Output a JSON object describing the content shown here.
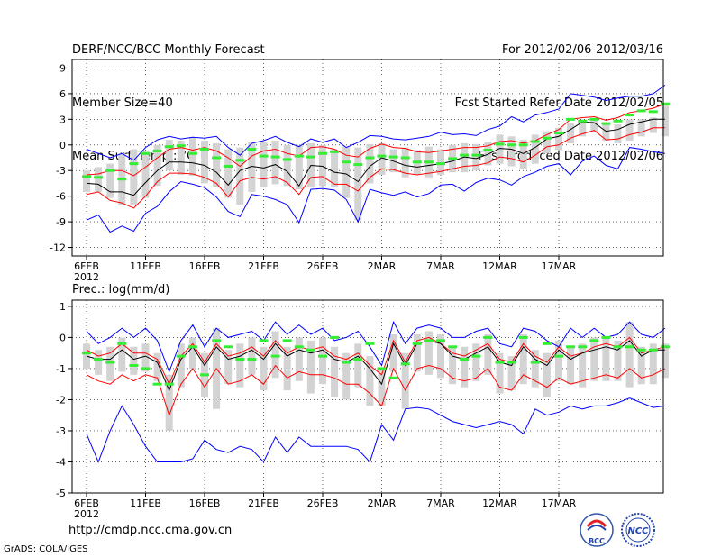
{
  "header": {
    "title": "DERF/NCC/BCC Monthly Forecast",
    "member_size": "Member Size=40",
    "variable": "Mean Surf. Temp.: °C",
    "period": "For 2012/02/06-2012/03/16",
    "refer_date": "Fcst Started Refer Date 2012/02/05",
    "produced_date": "Fcst Produced Date 2012/02/06"
  },
  "footer": {
    "url": "http://cmdp.ncc.cma.gov.cn",
    "grads": "GrADS: COLA/IGES",
    "logo_left_text": "BCC",
    "logo_right_text": "NCC"
  },
  "colors": {
    "envelope": "#0000ff",
    "band": "#ff0000",
    "mean": "#000000",
    "box": "#d3d3d3",
    "median": "#33ee33",
    "grid": "#000000"
  },
  "chart_data": [
    {
      "type": "line",
      "title": "Mean Surf. Temp.: °C",
      "ylim": [
        -13,
        10
      ],
      "yticks": [
        9,
        6,
        3,
        0,
        -3,
        -6,
        -9,
        -12
      ],
      "xticks": [
        "6FEB",
        "11FEB",
        "16FEB",
        "21FEB",
        "26FEB",
        "2MAR",
        "7MAR",
        "12MAR",
        "17MAR"
      ],
      "xtick_sub": "2012",
      "series": [
        {
          "name": "max",
          "values": [
            -0.5,
            -1,
            -1.5,
            -1,
            -1.8,
            -0.3,
            0.6,
            1.0,
            0.7,
            0.9,
            0.8,
            1.0,
            -0.3,
            -1.2,
            0.2,
            0.5,
            1.0,
            0.3,
            -0.2,
            0.7,
            0.3,
            0.7,
            -0.3,
            0.3,
            1.1,
            1.0,
            0.7,
            0.6,
            0.8,
            1.0,
            1.5,
            1.2,
            1.3,
            1.1,
            1.8,
            2.2,
            3.3,
            2.7,
            3.5,
            3.8,
            4.2,
            6.0,
            5.8,
            5.6,
            5.2,
            5.5,
            5.7,
            5.7,
            6.0,
            7.0
          ]
        },
        {
          "name": "upper",
          "values": [
            -3.5,
            -3.4,
            -3.0,
            -3.0,
            -3.6,
            -2.6,
            -1.5,
            -0.5,
            -0.3,
            -0.6,
            -0.3,
            -0.7,
            -1.5,
            -2.5,
            -1.3,
            -0.7,
            -0.5,
            -1.0,
            -1.3,
            -0.3,
            -0.2,
            -0.5,
            -1.2,
            -1.4,
            -0.4,
            0.1,
            -0.3,
            -0.4,
            -0.8,
            -0.9,
            -0.7,
            -0.5,
            -0.3,
            -0.3,
            -0.1,
            0.4,
            0.5,
            0.2,
            0.5,
            1.2,
            1.8,
            3.0,
            3.2,
            3.3,
            2.9,
            3.2,
            3.8,
            4.0,
            4.3,
            4.8
          ]
        },
        {
          "name": "mean",
          "values": [
            -4.5,
            -4.6,
            -5.5,
            -5.5,
            -5.9,
            -4.4,
            -3.0,
            -2.0,
            -2.0,
            -2.1,
            -2.4,
            -3.2,
            -4.7,
            -3.0,
            -2.5,
            -2.7,
            -2.3,
            -3.1,
            -4.8,
            -2.4,
            -2.5,
            -3.2,
            -3.4,
            -4.3,
            -2.5,
            -1.5,
            -1.9,
            -2.4,
            -2.6,
            -2.4,
            -2.2,
            -1.9,
            -1.4,
            -1.6,
            -1.1,
            -0.4,
            -0.5,
            -1.0,
            -0.3,
            0.7,
            1.0,
            1.8,
            2.7,
            2.6,
            1.6,
            1.8,
            2.4,
            2.7,
            3.0,
            3.0
          ]
        },
        {
          "name": "lower",
          "values": [
            -5.8,
            -5.5,
            -6.5,
            -6.8,
            -7.4,
            -6.0,
            -4.3,
            -3.3,
            -3.3,
            -3.4,
            -3.8,
            -4.5,
            -6.1,
            -4.2,
            -3.8,
            -4.0,
            -3.7,
            -4.4,
            -5.8,
            -3.8,
            -3.7,
            -4.6,
            -4.6,
            -5.4,
            -3.8,
            -2.8,
            -2.9,
            -3.3,
            -3.5,
            -3.3,
            -3.1,
            -2.8,
            -2.5,
            -2.4,
            -2.1,
            -1.4,
            -1.6,
            -2.0,
            -1.2,
            -0.2,
            0.0,
            0.8,
            1.3,
            1.7,
            0.6,
            0.7,
            1.2,
            1.5,
            2.0,
            2.0
          ]
        },
        {
          "name": "min",
          "values": [
            -8.8,
            -8.2,
            -10.2,
            -9.5,
            -10.1,
            -8.0,
            -7.2,
            -5.5,
            -4.3,
            -4.6,
            -5.0,
            -6.1,
            -7.8,
            -8.4,
            -5.8,
            -6.0,
            -6.4,
            -7.0,
            -9.1,
            -5.2,
            -5.1,
            -5.3,
            -6.4,
            -9.0,
            -5.2,
            -5.6,
            -5.9,
            -5.5,
            -6.1,
            -5.7,
            -4.7,
            -4.6,
            -5.4,
            -4.4,
            -3.9,
            -4.1,
            -4.7,
            -3.7,
            -3.2,
            -2.5,
            -2.2,
            -3.5,
            -1.9,
            -1.3,
            -2.4,
            -2.8,
            -0.3,
            -0.5,
            -0.8,
            -1.0
          ]
        }
      ],
      "boxes": {
        "upper": [
          -3.0,
          -2.6,
          -2.2,
          -1.0,
          -0.5,
          -0.8,
          0.0,
          0.6,
          0.5,
          0.9,
          0.5,
          0.2,
          -0.5,
          -0.3,
          0.3,
          0.4,
          0.5,
          0.0,
          0.0,
          0.2,
          0.0,
          -0.5,
          -0.2,
          -0.3,
          0.1,
          0.2,
          -0.5,
          -0.3,
          -0.6,
          -0.2,
          -0.5,
          0.0,
          0.2,
          0.1,
          0.4,
          1.2,
          1.0,
          0.6,
          1.2,
          1.6,
          2.0,
          2.5,
          2.6,
          3.0,
          2.5,
          2.4,
          3.0,
          3.0,
          3.2,
          4.6
        ],
        "lower": [
          -5.5,
          -5.5,
          -6.2,
          -7.0,
          -7.0,
          -6.2,
          -4.8,
          -3.0,
          -3.5,
          -3.6,
          -4.5,
          -5.0,
          -6.2,
          -7.0,
          -5.5,
          -5.0,
          -4.6,
          -4.8,
          -5.2,
          -5.0,
          -4.8,
          -5.0,
          -6.2,
          -8.8,
          -4.5,
          -3.5,
          -3.2,
          -3.8,
          -3.5,
          -3.8,
          -3.5,
          -3.2,
          -3.2,
          -3.0,
          -2.4,
          -2.2,
          -2.5,
          -2.8,
          -2.2,
          -1.0,
          -0.6,
          0.2,
          1.0,
          1.5,
          0.5,
          0.2,
          0.5,
          1.0,
          1.4,
          1.0
        ],
        "median": [
          -3.7,
          -3.8,
          -3.0,
          -4.0,
          -2.2,
          -1.0,
          -0.7,
          -0.2,
          -0.1,
          -1.0,
          -0.5,
          -1.5,
          -2.5,
          -1.8,
          -0.5,
          -1.3,
          -1.4,
          -1.7,
          -1.3,
          -1.4,
          -1.0,
          -0.8,
          -2.0,
          -2.3,
          -1.5,
          -1.3,
          -1.4,
          -1.5,
          -2.0,
          -2.0,
          -2.2,
          -1.6,
          -1.2,
          -1.2,
          -0.6,
          0.1,
          0.0,
          0.0,
          0.4,
          0.8,
          1.4,
          3.0,
          2.8,
          3.0,
          2.5,
          2.8,
          3.5,
          4.0,
          3.9,
          4.8
        ]
      }
    },
    {
      "type": "line",
      "title": "Prec.: log(mm/d)",
      "ylim": [
        -5,
        1.2
      ],
      "yticks": [
        1,
        0,
        -1,
        -2,
        -3,
        -4,
        -5
      ],
      "xticks": [
        "6FEB",
        "11FEB",
        "16FEB",
        "21FEB",
        "26FEB",
        "2MAR",
        "7MAR",
        "12MAR",
        "17MAR"
      ],
      "xtick_sub": "2012",
      "series": [
        {
          "name": "max",
          "values": [
            0.2,
            -0.2,
            0.0,
            0.3,
            0.0,
            0.3,
            -0.1,
            -1.1,
            -0.1,
            0.4,
            -0.3,
            0.3,
            0.0,
            0.1,
            0.2,
            -0.1,
            0.5,
            0.1,
            0.4,
            0.1,
            0.3,
            -0.1,
            0.0,
            0.2,
            -0.3,
            -0.9,
            0.5,
            -0.2,
            0.3,
            0.4,
            0.3,
            0.0,
            0.0,
            0.2,
            0.3,
            -0.2,
            -0.3,
            0.3,
            0.2,
            -0.1,
            -0.3,
            0.3,
            0.0,
            0.3,
            0.0,
            0.1,
            0.5,
            0.1,
            0.0,
            0.3
          ]
        },
        {
          "name": "upper",
          "values": [
            -0.4,
            -0.6,
            -0.5,
            -0.2,
            -0.5,
            -0.5,
            -0.7,
            -1.5,
            -0.6,
            -0.2,
            -0.8,
            -0.2,
            -0.6,
            -0.5,
            -0.3,
            -0.6,
            -0.1,
            -0.5,
            -0.3,
            -0.4,
            -0.3,
            -0.6,
            -0.7,
            -0.5,
            -0.9,
            -1.2,
            -0.1,
            -0.8,
            -0.1,
            0.0,
            -0.2,
            -0.5,
            -0.6,
            -0.4,
            -0.2,
            -0.7,
            -0.8,
            -0.2,
            -0.6,
            -0.8,
            -0.3,
            -0.6,
            -0.5,
            -0.3,
            -0.2,
            -0.3,
            0.0,
            -0.5,
            -0.4,
            -0.3
          ]
        },
        {
          "name": "mean",
          "values": [
            -0.6,
            -0.7,
            -0.7,
            -0.4,
            -0.7,
            -0.6,
            -0.8,
            -1.7,
            -0.7,
            -0.3,
            -0.9,
            -0.3,
            -0.7,
            -0.6,
            -0.4,
            -0.7,
            -0.2,
            -0.6,
            -0.4,
            -0.5,
            -0.4,
            -0.7,
            -0.8,
            -0.6,
            -1.0,
            -1.5,
            -0.2,
            -0.9,
            -0.2,
            -0.1,
            -0.2,
            -0.6,
            -0.7,
            -0.5,
            -0.3,
            -0.8,
            -0.9,
            -0.3,
            -0.7,
            -0.9,
            -0.4,
            -0.7,
            -0.5,
            -0.4,
            -0.3,
            -0.4,
            -0.1,
            -0.6,
            -0.4,
            -0.4
          ]
        },
        {
          "name": "lower",
          "values": [
            -1.2,
            -1.4,
            -1.5,
            -1.2,
            -1.4,
            -1.2,
            -1.3,
            -2.5,
            -1.5,
            -1.0,
            -1.6,
            -1.0,
            -1.5,
            -1.4,
            -1.2,
            -1.5,
            -0.9,
            -1.3,
            -1.1,
            -1.2,
            -1.2,
            -1.3,
            -1.5,
            -1.5,
            -1.8,
            -2.2,
            -1.0,
            -1.7,
            -1.0,
            -0.9,
            -1.0,
            -1.3,
            -1.4,
            -1.3,
            -1.0,
            -1.6,
            -1.7,
            -1.2,
            -1.4,
            -1.6,
            -1.3,
            -1.5,
            -1.4,
            -1.3,
            -1.2,
            -1.3,
            -1.0,
            -1.3,
            -1.2,
            -1.0
          ]
        },
        {
          "name": "min",
          "values": [
            -3.1,
            -4.0,
            -3.0,
            -2.2,
            -2.8,
            -3.5,
            -4.0,
            -4.0,
            -4.0,
            -3.9,
            -3.3,
            -3.6,
            -3.7,
            -3.5,
            -3.6,
            -4.0,
            -3.2,
            -3.7,
            -3.2,
            -3.5,
            -3.5,
            -3.5,
            -3.5,
            -3.6,
            -4.0,
            -2.8,
            -3.3,
            -2.3,
            -2.25,
            -2.3,
            -2.5,
            -2.7,
            -2.8,
            -2.9,
            -2.8,
            -2.7,
            -2.8,
            -3.1,
            -2.3,
            -2.5,
            -2.4,
            -2.2,
            -2.3,
            -2.2,
            -2.2,
            -2.1,
            -1.95,
            -2.1,
            -2.25,
            -2.2
          ]
        }
      ],
      "boxes": {
        "upper": [
          -0.2,
          -0.4,
          -0.3,
          0.0,
          -0.3,
          -0.2,
          -0.5,
          -1.2,
          -0.2,
          0.0,
          -0.5,
          0.3,
          -0.4,
          -0.2,
          0.0,
          -0.3,
          0.2,
          -0.3,
          0.0,
          -0.1,
          0.0,
          -0.3,
          -0.5,
          -0.2,
          -0.6,
          -1.0,
          0.1,
          -0.5,
          0.1,
          0.2,
          0.1,
          -0.3,
          -0.3,
          -0.2,
          0.1,
          -0.5,
          -0.6,
          0.1,
          -0.4,
          -0.5,
          -0.1,
          -0.3,
          -0.2,
          0.0,
          0.0,
          -0.1,
          0.5,
          -0.3,
          -0.2,
          -0.2
        ],
        "lower": [
          -1.0,
          -1.2,
          -1.4,
          -1.1,
          -1.2,
          -1.1,
          -1.4,
          -3.0,
          -1.6,
          -1.0,
          -1.9,
          -2.3,
          -1.5,
          -1.6,
          -1.2,
          -1.7,
          -1.3,
          -1.7,
          -1.4,
          -1.8,
          -1.5,
          -1.9,
          -2.0,
          -1.6,
          -2.2,
          -2.2,
          -1.1,
          -2.3,
          -1.1,
          -1.2,
          -1.3,
          -1.5,
          -1.6,
          -1.4,
          -1.2,
          -1.8,
          -1.7,
          -1.5,
          -1.6,
          -1.9,
          -1.4,
          -1.5,
          -1.6,
          -1.4,
          -1.4,
          -1.4,
          -1.6,
          -1.5,
          -1.5,
          -1.3
        ],
        "median": [
          -0.5,
          -0.7,
          -0.8,
          -0.2,
          -0.9,
          -1.0,
          -1.5,
          -1.5,
          -0.6,
          -0.3,
          -1.2,
          -0.1,
          -0.3,
          -0.7,
          -0.7,
          -0.1,
          -0.6,
          -0.1,
          -0.3,
          -0.4,
          -0.6,
          0.0,
          -0.8,
          -0.7,
          -0.2,
          -1.0,
          -1.3,
          -0.85,
          -0.2,
          -0.1,
          -0.1,
          -0.3,
          -0.7,
          -0.6,
          0.0,
          -0.8,
          -0.8,
          0.0,
          -0.8,
          -0.2,
          -0.6,
          -0.3,
          -0.3,
          -0.1,
          0.0,
          -0.3,
          -0.3,
          -0.4,
          -0.4,
          -0.3
        ]
      }
    }
  ]
}
